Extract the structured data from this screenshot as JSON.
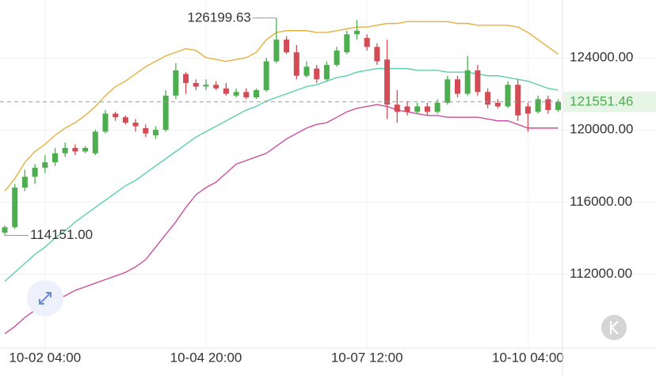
{
  "chart_data": {
    "type": "candlestick",
    "categories": [
      null,
      null,
      null,
      null,
      "10-02 04:00",
      null,
      null,
      null,
      null,
      null,
      null,
      null,
      null,
      null,
      null,
      null,
      null,
      null,
      null,
      null,
      "10-04 20:00",
      null,
      null,
      null,
      null,
      null,
      null,
      null,
      null,
      null,
      null,
      null,
      null,
      null,
      null,
      null,
      "10-07 12:00",
      null,
      null,
      null,
      null,
      null,
      null,
      null,
      null,
      null,
      null,
      null,
      null,
      null,
      null,
      null,
      "10-10 04:00",
      null,
      null,
      null
    ],
    "open": [
      114300,
      114600,
      116800,
      117400,
      117900,
      118200,
      118700,
      119000,
      118800,
      118700,
      119900,
      120900,
      120700,
      120400,
      120100,
      119700,
      120000,
      121900,
      123100,
      122600,
      122400,
      122500,
      122300,
      121900,
      122100,
      121800,
      122200,
      123800,
      125000,
      124300,
      123000,
      123400,
      122800,
      123600,
      124300,
      125300,
      125100,
      124600,
      123900,
      121400,
      121300,
      121000,
      121300,
      121000,
      121500,
      122800,
      122000,
      123300,
      122100,
      121500,
      121300,
      122500,
      121300,
      121000,
      121700,
      121100
    ],
    "high": [
      114700,
      117000,
      117800,
      118100,
      118600,
      119000,
      119300,
      119200,
      119100,
      120000,
      121100,
      121000,
      120800,
      120600,
      120300,
      120200,
      122200,
      123700,
      123200,
      122800,
      122800,
      122700,
      122600,
      122300,
      122300,
      122300,
      124000,
      126199.63,
      125200,
      124700,
      123800,
      123600,
      123800,
      124600,
      125500,
      126100,
      125300,
      124800,
      125000,
      122200,
      121600,
      121500,
      121500,
      121700,
      123000,
      123000,
      124100,
      123600,
      122300,
      121700,
      122700,
      122800,
      121500,
      121900,
      121900,
      121700
    ],
    "low": [
      114151,
      114500,
      116600,
      117000,
      117600,
      118000,
      118500,
      118600,
      118700,
      118600,
      119800,
      120500,
      120300,
      119900,
      119600,
      119500,
      119900,
      121700,
      122000,
      122200,
      122200,
      122200,
      121900,
      121800,
      121700,
      121700,
      122100,
      123700,
      124200,
      122800,
      122900,
      122600,
      122700,
      123500,
      124200,
      125000,
      124400,
      123600,
      120600,
      120400,
      120800,
      120900,
      120800,
      120900,
      121400,
      121800,
      121900,
      121900,
      121200,
      121200,
      121200,
      120500,
      119900,
      120900,
      120900,
      121000
    ],
    "close": [
      114600,
      116800,
      117400,
      117900,
      118200,
      118700,
      119000,
      118800,
      119000,
      119900,
      120900,
      120700,
      120400,
      120200,
      119800,
      120000,
      121900,
      123300,
      122600,
      122400,
      122500,
      122300,
      122000,
      122100,
      121800,
      122200,
      123800,
      125000,
      124300,
      123000,
      123500,
      122800,
      123600,
      124400,
      125300,
      125500,
      124600,
      123800,
      121400,
      121000,
      121000,
      121300,
      121000,
      121500,
      122800,
      122000,
      123300,
      122100,
      121400,
      121300,
      122500,
      120800,
      120900,
      121700,
      121100,
      121551.46
    ],
    "up_color": "#4cae4f",
    "down_color": "#d24b55",
    "bands": {
      "upper": {
        "color": "#e6b03c",
        "values": [
          116600,
          117300,
          118200,
          118800,
          119200,
          119700,
          120100,
          120400,
          120800,
          121300,
          121900,
          122400,
          122700,
          123100,
          123500,
          123800,
          124100,
          124300,
          124500,
          124400,
          124000,
          123900,
          123800,
          123900,
          124000,
          124300,
          125000,
          125400,
          125500,
          125500,
          125500,
          125400,
          125400,
          125500,
          125600,
          125700,
          125700,
          125800,
          125900,
          125900,
          126000,
          126000,
          126000,
          126000,
          126000,
          125900,
          125900,
          125800,
          125800,
          125800,
          125800,
          125700,
          125400,
          125000,
          124600,
          124200
        ]
      },
      "middle": {
        "color": "#5ccfae",
        "values": [
          111600,
          112100,
          112600,
          113100,
          113500,
          114000,
          114400,
          114900,
          115300,
          115700,
          116100,
          116500,
          116900,
          117200,
          117600,
          118000,
          118400,
          118800,
          119200,
          119600,
          119900,
          120200,
          120500,
          120800,
          121100,
          121300,
          121600,
          121800,
          122000,
          122200,
          122400,
          122500,
          122700,
          122900,
          123000,
          123200,
          123300,
          123400,
          123400,
          123400,
          123400,
          123300,
          123300,
          123300,
          123200,
          123200,
          123200,
          123100,
          123000,
          123000,
          122900,
          122800,
          122700,
          122500,
          122300,
          122200
        ]
      },
      "lower": {
        "color": "#c8509f",
        "values": [
          108700,
          109100,
          109600,
          110000,
          110300,
          110600,
          110800,
          111100,
          111300,
          111500,
          111700,
          111900,
          112100,
          112400,
          112800,
          113500,
          114200,
          114900,
          115700,
          116400,
          116800,
          117100,
          117600,
          118100,
          118300,
          118500,
          118700,
          119100,
          119500,
          119800,
          120100,
          120300,
          120400,
          120700,
          121000,
          121200,
          121300,
          121400,
          121300,
          121100,
          121000,
          120900,
          120800,
          120800,
          120700,
          120700,
          120700,
          120700,
          120600,
          120500,
          120500,
          120300,
          120100,
          120100,
          120100,
          120100
        ]
      }
    },
    "extremes": {
      "high": 126199.63,
      "low": {
        "value": 114151,
        "label": "114151.00"
      }
    },
    "last_price": 121551.46,
    "last_color": "#4cae4f",
    "ylim": [
      107900,
      127200
    ],
    "yticks": [
      {
        "value": 112000,
        "label": "112000.00"
      },
      {
        "value": 116000,
        "label": "116000.00"
      },
      {
        "value": 120000,
        "label": "120000.00"
      },
      {
        "value": 124000,
        "label": "124000.00"
      }
    ],
    "grid": true
  }
}
